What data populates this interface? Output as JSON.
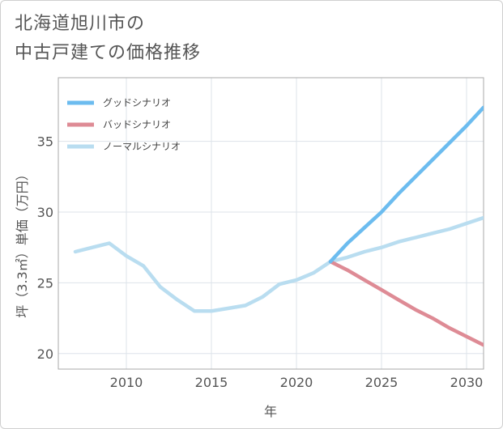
{
  "title_lines": [
    "北海道旭川市の",
    "中古戸建ての価格推移"
  ],
  "chart_data": {
    "type": "line",
    "title": "北海道旭川市の中古戸建ての価格推移",
    "xlabel": "年",
    "ylabel": "坪（3.3㎡）単価（万円）",
    "xlim": [
      2006,
      2031
    ],
    "ylim": [
      18.9,
      39.5
    ],
    "xticks": [
      2010,
      2015,
      2020,
      2025,
      2030
    ],
    "yticks": [
      20,
      25,
      30,
      35
    ],
    "grid": true,
    "legend_position": "top-left",
    "series": [
      {
        "name": "グッドシナリオ",
        "color": "#6cbcef",
        "x": [
          2022,
          2023,
          2024,
          2025,
          2026,
          2027,
          2028,
          2029,
          2030,
          2031
        ],
        "y": [
          26.5,
          27.8,
          28.9,
          30.0,
          31.3,
          32.5,
          33.7,
          34.9,
          36.1,
          37.4
        ]
      },
      {
        "name": "バッドシナリオ",
        "color": "#de8b95",
        "x": [
          2022,
          2023,
          2024,
          2025,
          2026,
          2027,
          2028,
          2029,
          2030,
          2031
        ],
        "y": [
          26.5,
          25.9,
          25.2,
          24.5,
          23.8,
          23.1,
          22.5,
          21.8,
          21.2,
          20.6
        ]
      },
      {
        "name": "ノーマルシナリオ",
        "color": "#b9ddf0",
        "x": [
          2007,
          2008,
          2009,
          2010,
          2011,
          2012,
          2013,
          2014,
          2015,
          2016,
          2017,
          2018,
          2019,
          2020,
          2021,
          2022,
          2023,
          2024,
          2025,
          2026,
          2027,
          2028,
          2029,
          2030,
          2031
        ],
        "y": [
          27.2,
          27.5,
          27.8,
          26.9,
          26.2,
          24.7,
          23.8,
          23.0,
          23.0,
          23.2,
          23.4,
          24.0,
          24.9,
          25.2,
          25.7,
          26.5,
          26.8,
          27.2,
          27.5,
          27.9,
          28.2,
          28.5,
          28.8,
          29.2,
          29.6
        ]
      }
    ]
  }
}
